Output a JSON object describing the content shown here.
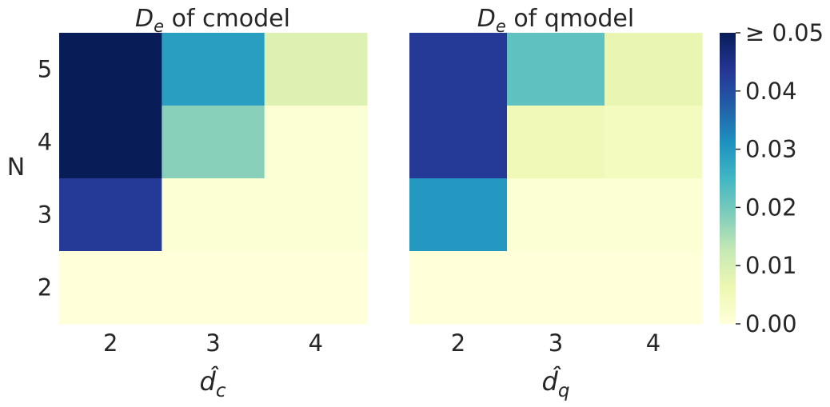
{
  "chart_data": [
    {
      "type": "heatmap",
      "title": "D_e of cmodel",
      "title_symbol": "D",
      "title_subscript": "e",
      "title_rest": " of cmodel",
      "xlabel": "d̂_c",
      "xlabel_symbol": "d̂",
      "xlabel_subscript": "c",
      "ylabel": "N",
      "x_categories": [
        "2",
        "3",
        "4"
      ],
      "y_categories": [
        "5",
        "4",
        "3",
        "2"
      ],
      "values": [
        [
          0.05,
          0.029,
          0.009
        ],
        [
          0.05,
          0.018,
          0.001
        ],
        [
          0.043,
          0.001,
          0.001
        ],
        [
          0.0,
          0.0,
          0.0
        ]
      ]
    },
    {
      "type": "heatmap",
      "title": "D_e of qmodel",
      "title_symbol": "D",
      "title_subscript": "e",
      "title_rest": " of qmodel",
      "xlabel": "d̂_q",
      "xlabel_symbol": "d̂",
      "xlabel_subscript": "q",
      "ylabel": "",
      "x_categories": [
        "2",
        "3",
        "4"
      ],
      "y_categories": [
        "5",
        "4",
        "3",
        "2"
      ],
      "values": [
        [
          0.043,
          0.022,
          0.007
        ],
        [
          0.043,
          0.005,
          0.004
        ],
        [
          0.03,
          0.001,
          0.001
        ],
        [
          0.0,
          0.0,
          0.0
        ]
      ]
    }
  ],
  "colorbar": {
    "colormap": "YlGnBu",
    "range": [
      0,
      0.05
    ],
    "tick_values": [
      0,
      0.01,
      0.02,
      0.03,
      0.04,
      0.05
    ],
    "tick_labels": [
      "0.00",
      "0.01",
      "0.02",
      "0.03",
      "0.04",
      "≥ 0.05"
    ]
  },
  "colormap_stops": [
    "#ffffd9",
    "#edf8b1",
    "#c7e9b4",
    "#7fcdbb",
    "#41b6c4",
    "#1d91c0",
    "#225ea8",
    "#253494",
    "#081d58"
  ]
}
